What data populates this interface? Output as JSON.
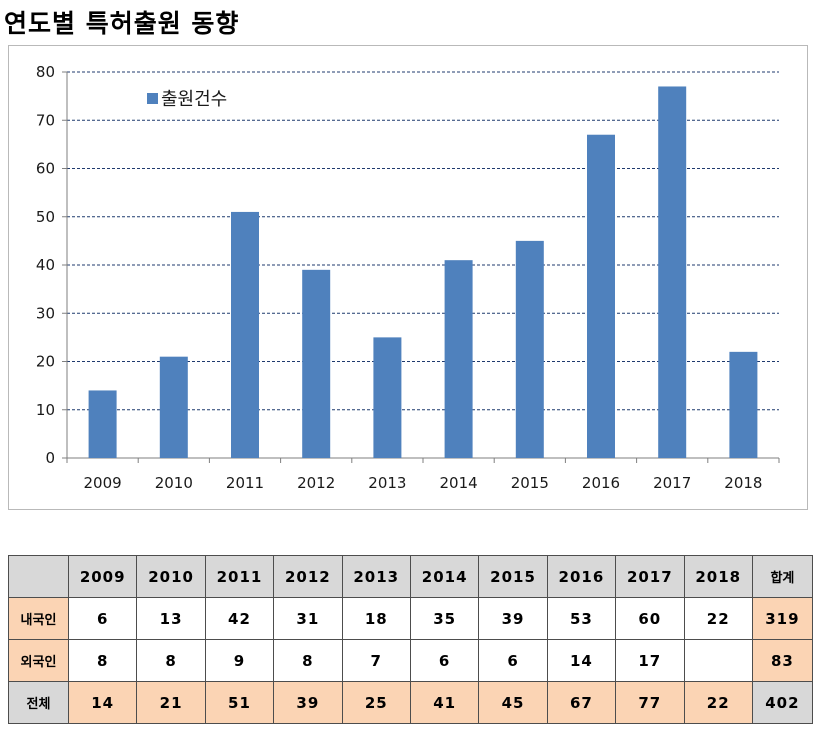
{
  "title": "연도별 특허출원 동향",
  "chart_data": {
    "type": "bar",
    "categories": [
      "2009",
      "2010",
      "2011",
      "2012",
      "2013",
      "2014",
      "2015",
      "2016",
      "2017",
      "2018"
    ],
    "series": [
      {
        "name": "출원건수",
        "values": [
          14,
          21,
          51,
          39,
          25,
          41,
          45,
          67,
          77,
          22
        ]
      }
    ],
    "yticks": [
      0,
      10,
      20,
      30,
      40,
      50,
      60,
      70,
      80
    ],
    "ylim": [
      0,
      80
    ],
    "grid": true,
    "legend": "top-left",
    "bar_color": "#4f81bd"
  },
  "table": {
    "header": [
      "2009",
      "2010",
      "2011",
      "2012",
      "2013",
      "2014",
      "2015",
      "2016",
      "2017",
      "2018"
    ],
    "sum_label": "합계",
    "rows": [
      {
        "label": "내국인",
        "values": [
          "6",
          "13",
          "42",
          "31",
          "18",
          "35",
          "39",
          "53",
          "60",
          "22"
        ],
        "sum": "319"
      },
      {
        "label": "외국인",
        "values": [
          "8",
          "8",
          "9",
          "8",
          "7",
          "6",
          "6",
          "14",
          "17",
          ""
        ],
        "sum": "83"
      },
      {
        "label": "전체",
        "values": [
          "14",
          "21",
          "51",
          "39",
          "25",
          "41",
          "45",
          "67",
          "77",
          "22"
        ],
        "sum": "402"
      }
    ]
  }
}
